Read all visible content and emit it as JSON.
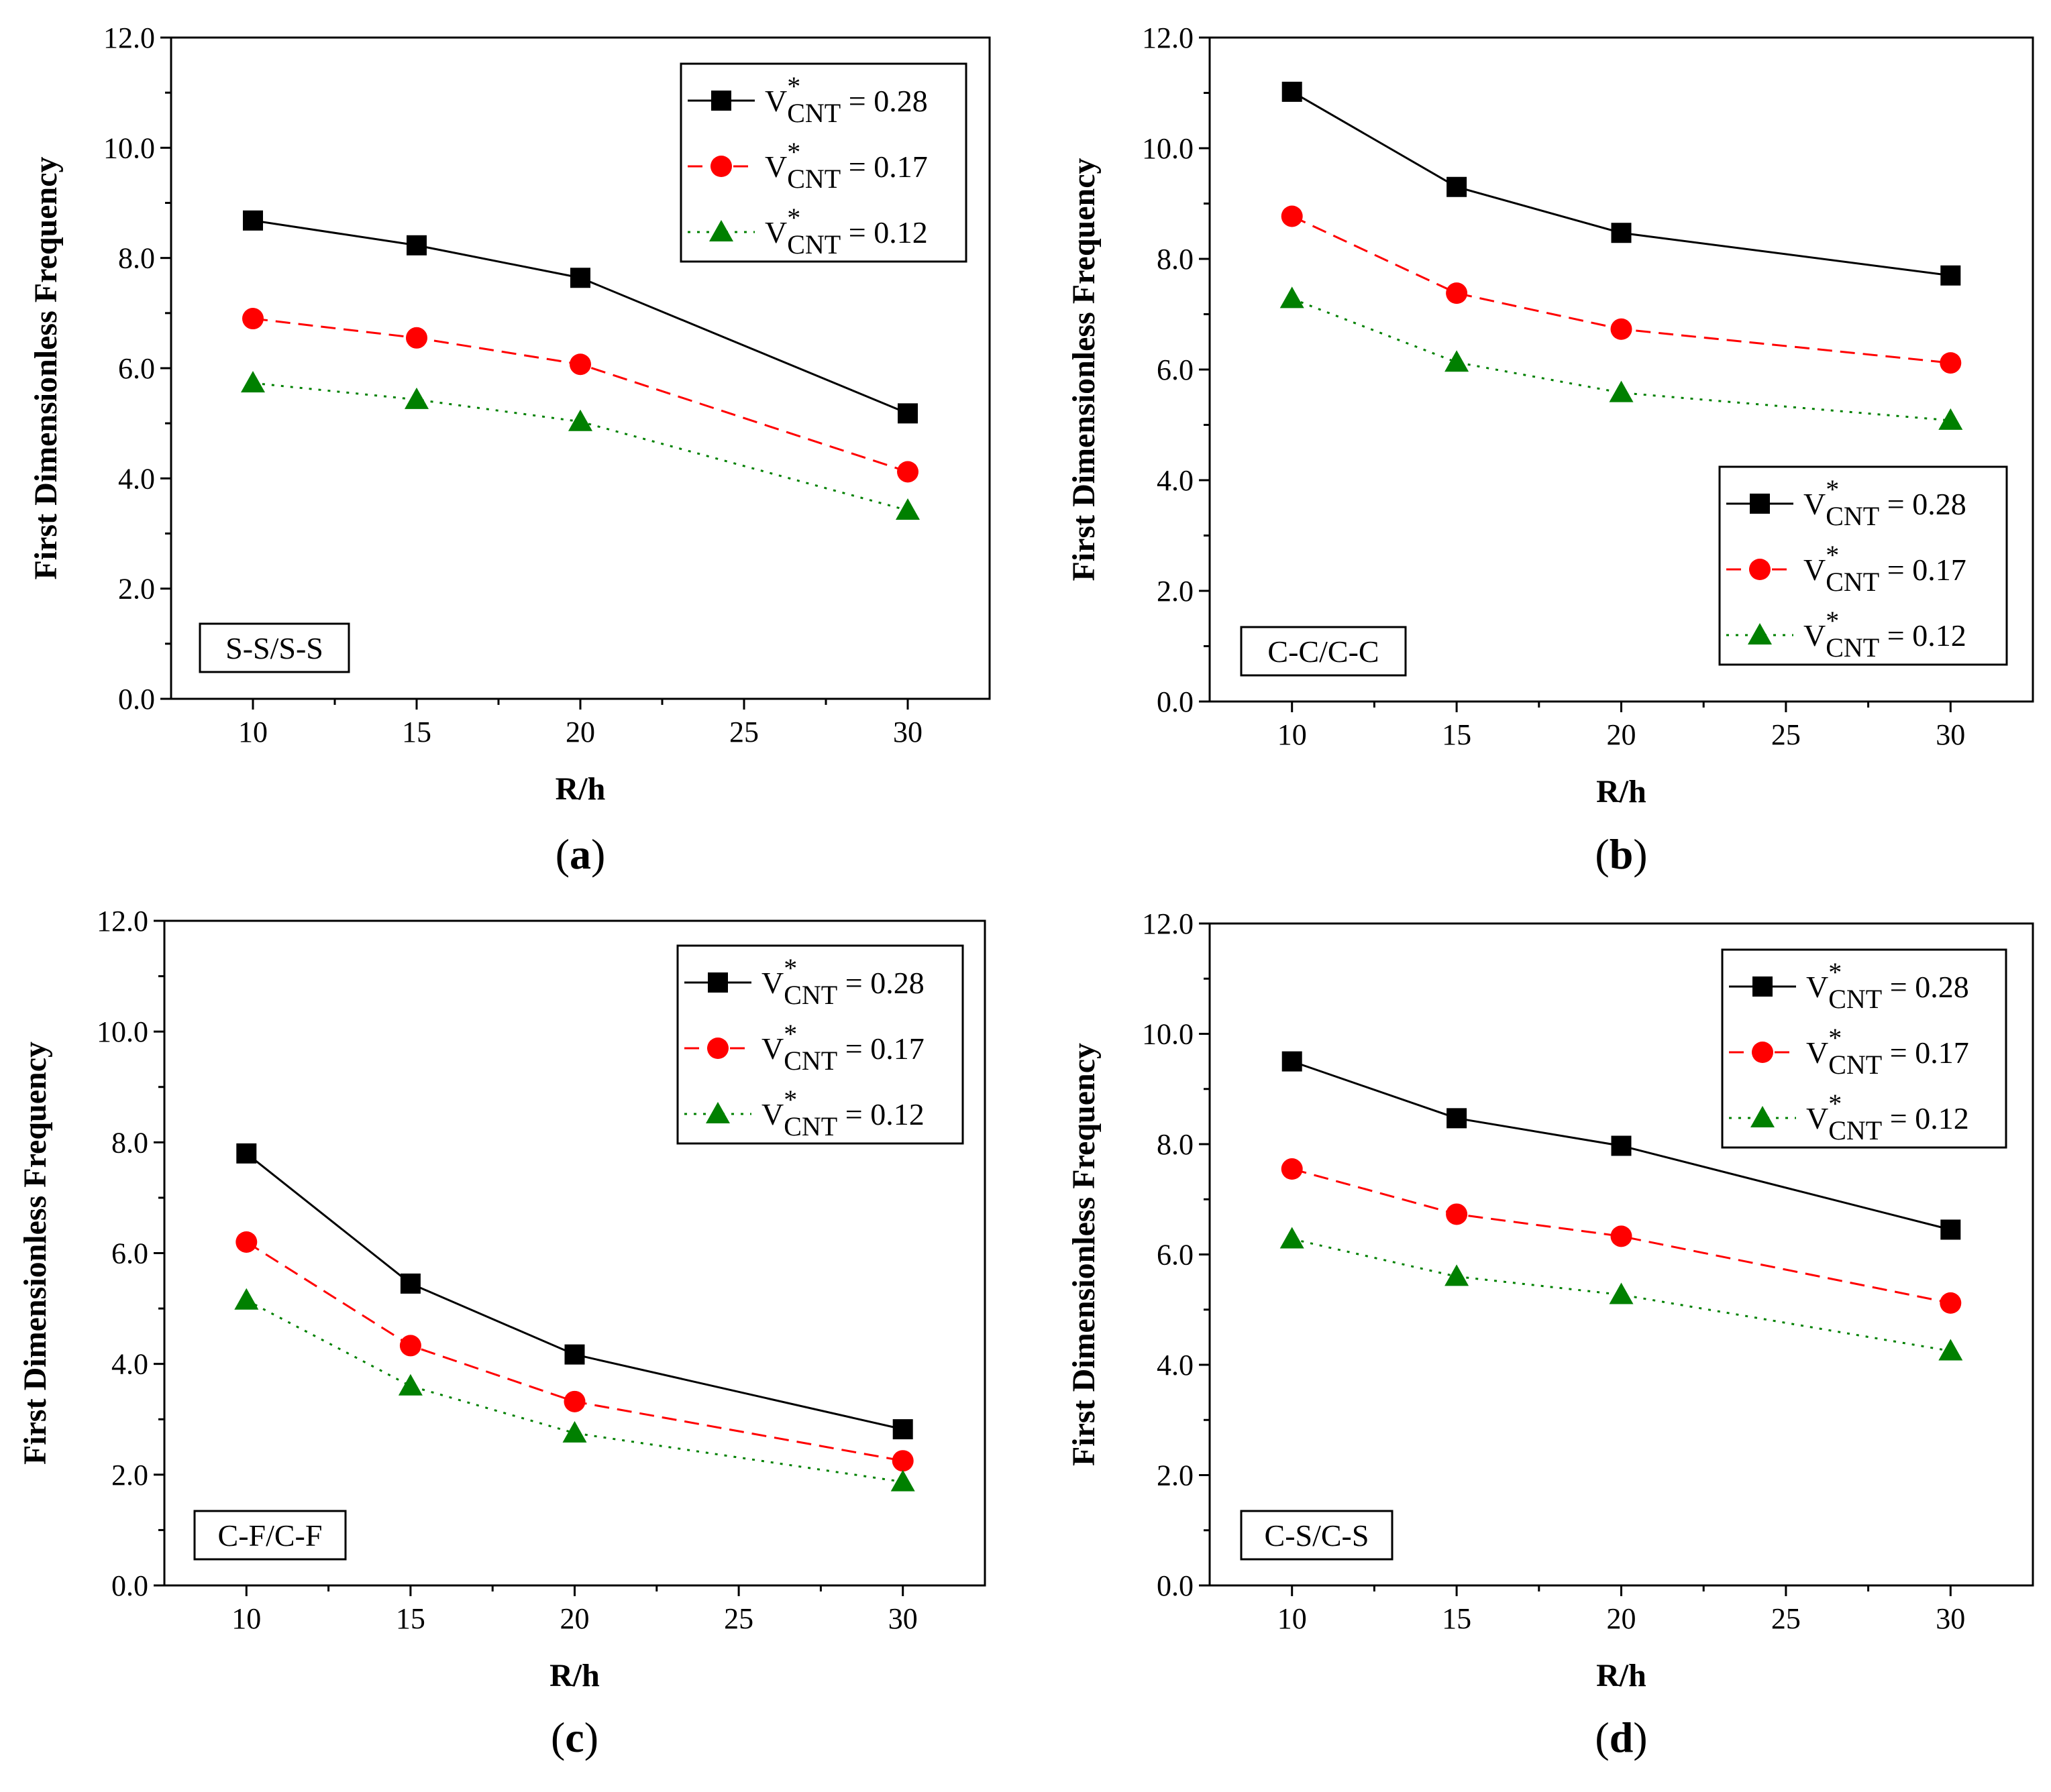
{
  "figure": {
    "series_style": [
      {
        "color": "#000000",
        "marker": "square",
        "dash": "none"
      },
      {
        "color": "#ff0000",
        "marker": "circle",
        "dash": "22,12"
      },
      {
        "color": "#008000",
        "marker": "triangle",
        "dash": "4,10"
      }
    ],
    "legend_symbol": {
      "base": "V",
      "sup": "*",
      "sub": "CNT",
      "eq": " = "
    }
  },
  "chart_data": [
    {
      "type": "line",
      "panel_label": "a",
      "title": "",
      "xlabel": "R/h",
      "ylabel": "First Dimensionless Frequency",
      "boundary_condition": "S-S/S-S",
      "x": [
        10,
        15,
        20,
        30
      ],
      "xlim": [
        7.5,
        32.5
      ],
      "xticks": [
        "10",
        "15",
        "20",
        "25",
        "30"
      ],
      "ylim": [
        0,
        12
      ],
      "yticks": [
        "0.0",
        "2.0",
        "4.0",
        "6.0",
        "8.0",
        "10.0",
        "12.0"
      ],
      "grid": false,
      "legend_position": "top-right",
      "bc_position": "bottom-left",
      "series": [
        {
          "name": "V*CNT = 0.28",
          "value_label": "0.28",
          "values": [
            8.68,
            8.23,
            7.64,
            5.18
          ]
        },
        {
          "name": "V*CNT = 0.17",
          "value_label": "0.17",
          "values": [
            6.9,
            6.55,
            6.07,
            4.12
          ]
        },
        {
          "name": "V*CNT = 0.12",
          "value_label": "0.12",
          "values": [
            5.73,
            5.43,
            5.03,
            3.42
          ]
        }
      ]
    },
    {
      "type": "line",
      "panel_label": "b",
      "title": "",
      "xlabel": "R/h",
      "ylabel": "First Dimensionless Frequency",
      "boundary_condition": "C-C/C-C",
      "x": [
        10,
        15,
        20,
        30
      ],
      "xlim": [
        7.5,
        32.5
      ],
      "xticks": [
        "10",
        "15",
        "20",
        "25",
        "30"
      ],
      "ylim": [
        0,
        12
      ],
      "yticks": [
        "0.0",
        "2.0",
        "4.0",
        "6.0",
        "8.0",
        "10.0",
        "12.0"
      ],
      "grid": false,
      "legend_position": "bottom-right",
      "bc_position": "bottom-left",
      "series": [
        {
          "name": "V*CNT = 0.28",
          "value_label": "0.28",
          "values": [
            11.02,
            9.3,
            8.47,
            7.7
          ]
        },
        {
          "name": "V*CNT = 0.17",
          "value_label": "0.17",
          "values": [
            8.77,
            7.38,
            6.73,
            6.12
          ]
        },
        {
          "name": "V*CNT = 0.12",
          "value_label": "0.12",
          "values": [
            7.28,
            6.13,
            5.58,
            5.08
          ]
        }
      ]
    },
    {
      "type": "line",
      "panel_label": "c",
      "title": "",
      "xlabel": "R/h",
      "ylabel": "First Dimensionless Frequency",
      "boundary_condition": "C-F/C-F",
      "x": [
        10,
        15,
        20,
        30
      ],
      "xlim": [
        7.5,
        32.5
      ],
      "xticks": [
        "10",
        "15",
        "20",
        "25",
        "30"
      ],
      "ylim": [
        0,
        12
      ],
      "yticks": [
        "0.0",
        "2.0",
        "4.0",
        "6.0",
        "8.0",
        "10.0",
        "12.0"
      ],
      "grid": false,
      "legend_position": "top-right",
      "bc_position": "bottom-left",
      "series": [
        {
          "name": "V*CNT = 0.28",
          "value_label": "0.28",
          "values": [
            7.8,
            5.45,
            4.17,
            2.82
          ]
        },
        {
          "name": "V*CNT = 0.17",
          "value_label": "0.17",
          "values": [
            6.2,
            4.33,
            3.32,
            2.25
          ]
        },
        {
          "name": "V*CNT = 0.12",
          "value_label": "0.12",
          "values": [
            5.15,
            3.6,
            2.75,
            1.87
          ]
        }
      ]
    },
    {
      "type": "line",
      "panel_label": "d",
      "title": "",
      "xlabel": "R/h",
      "ylabel": "First Dimensionless Frequency",
      "boundary_condition": "C-S/C-S",
      "x": [
        10,
        15,
        20,
        30
      ],
      "xlim": [
        7.5,
        32.5
      ],
      "xticks": [
        "10",
        "15",
        "20",
        "25",
        "30"
      ],
      "ylim": [
        0,
        12
      ],
      "yticks": [
        "0.0",
        "2.0",
        "4.0",
        "6.0",
        "8.0",
        "10.0",
        "12.0"
      ],
      "grid": false,
      "legend_position": "top-right",
      "bc_position": "bottom-left",
      "series": [
        {
          "name": "V*CNT = 0.28",
          "value_label": "0.28",
          "values": [
            9.5,
            8.47,
            7.97,
            6.45
          ]
        },
        {
          "name": "V*CNT = 0.17",
          "value_label": "0.17",
          "values": [
            7.55,
            6.73,
            6.33,
            5.12
          ]
        },
        {
          "name": "V*CNT = 0.12",
          "value_label": "0.12",
          "values": [
            6.28,
            5.6,
            5.27,
            4.25
          ]
        }
      ]
    }
  ]
}
